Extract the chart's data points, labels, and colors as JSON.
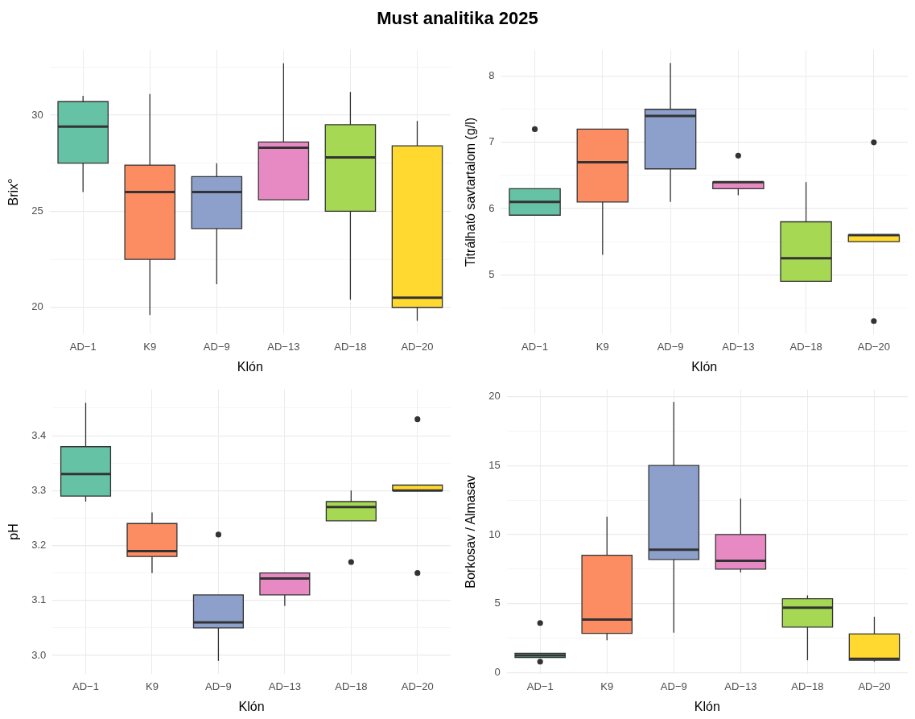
{
  "chart_data": [
    {
      "type": "box",
      "title": "Must analitika 2025",
      "xlabel": "Klón",
      "ylabel": "Brix°",
      "categories": [
        "AD−1",
        "K9",
        "AD−9",
        "AD−13",
        "AD−18",
        "AD−20"
      ],
      "colors": [
        "#66c2a5",
        "#fc8d62",
        "#8da0cb",
        "#e78ac3",
        "#a6d854",
        "#ffd92f"
      ],
      "boxes": [
        {
          "low": 26.0,
          "q1": 27.5,
          "median": 29.4,
          "q3": 30.7,
          "high": 31.0
        },
        {
          "low": 19.6,
          "q1": 22.5,
          "median": 26.0,
          "q3": 27.4,
          "high": 31.1
        },
        {
          "low": 21.2,
          "q1": 24.1,
          "median": 26.0,
          "q3": 26.8,
          "high": 27.5
        },
        {
          "low": 25.6,
          "q1": 25.6,
          "median": 28.3,
          "q3": 28.6,
          "high": 32.7
        },
        {
          "low": 20.4,
          "q1": 25.0,
          "median": 27.8,
          "q3": 29.5,
          "high": 31.2
        },
        {
          "low": 19.3,
          "q1": 20.0,
          "median": 20.5,
          "q3": 28.4,
          "high": 29.7
        }
      ],
      "ylim": [
        18.6,
        33.4
      ],
      "yticks": [
        20,
        {
          "value": 22.5,
          "label": null
        },
        25,
        {
          "value": 27.5,
          "label": null
        },
        30,
        {
          "value": 32.5,
          "label": null
        }
      ],
      "grid": true
    },
    {
      "type": "box",
      "xlabel": "Klón",
      "ylabel": "Titrálható savtartalom (g/l)",
      "categories": [
        "AD−1",
        "K9",
        "AD−9",
        "AD−13",
        "AD−18",
        "AD−20"
      ],
      "colors": [
        "#66c2a5",
        "#fc8d62",
        "#8da0cb",
        "#e78ac3",
        "#a6d854",
        "#ffd92f"
      ],
      "boxes": [
        {
          "low": 5.9,
          "q1": 5.9,
          "median": 6.1,
          "q3": 6.3,
          "high": 6.3,
          "outliers": [
            7.2
          ]
        },
        {
          "low": 5.3,
          "q1": 6.1,
          "median": 6.7,
          "q3": 7.2,
          "high": 7.2
        },
        {
          "low": 6.1,
          "q1": 6.6,
          "median": 7.4,
          "q3": 7.5,
          "high": 8.2
        },
        {
          "low": 6.2,
          "q1": 6.3,
          "median": 6.4,
          "q3": 6.4,
          "high": 6.4,
          "outliers": [
            6.8
          ]
        },
        {
          "low": 4.9,
          "q1": 4.9,
          "median": 5.25,
          "q3": 5.8,
          "high": 6.4
        },
        {
          "low": 5.5,
          "q1": 5.5,
          "median": 5.6,
          "q3": 5.6,
          "high": 5.6,
          "outliers": [
            7.0,
            4.3
          ]
        }
      ],
      "ylim": [
        4.1,
        8.4
      ],
      "yticks": [
        {
          "value": 4.5,
          "label": null
        },
        5,
        {
          "value": 5.5,
          "label": null
        },
        6,
        {
          "value": 6.5,
          "label": null
        },
        7,
        {
          "value": 7.5,
          "label": null
        },
        8
      ],
      "grid": true
    },
    {
      "type": "box",
      "xlabel": "Klón",
      "ylabel": "pH",
      "categories": [
        "AD−1",
        "K9",
        "AD−9",
        "AD−13",
        "AD−18",
        "AD−20"
      ],
      "colors": [
        "#66c2a5",
        "#fc8d62",
        "#8da0cb",
        "#e78ac3",
        "#a6d854",
        "#ffd92f"
      ],
      "boxes": [
        {
          "low": 3.28,
          "q1": 3.29,
          "median": 3.33,
          "q3": 3.38,
          "high": 3.46
        },
        {
          "low": 3.15,
          "q1": 3.18,
          "median": 3.19,
          "q3": 3.24,
          "high": 3.26
        },
        {
          "low": 2.99,
          "q1": 3.05,
          "median": 3.06,
          "q3": 3.11,
          "high": 3.11,
          "outliers": [
            3.22
          ]
        },
        {
          "low": 3.09,
          "q1": 3.11,
          "median": 3.14,
          "q3": 3.15,
          "high": 3.15
        },
        {
          "low": 3.245,
          "q1": 3.245,
          "median": 3.27,
          "q3": 3.28,
          "high": 3.3,
          "outliers": [
            3.17
          ]
        },
        {
          "low": 3.3,
          "q1": 3.3,
          "median": 3.3,
          "q3": 3.31,
          "high": 3.31,
          "outliers": [
            3.43,
            3.15
          ]
        }
      ],
      "ylim": [
        2.966,
        3.484
      ],
      "yticks": [
        {
          "value": 3,
          "label": "3.0"
        },
        {
          "value": 3.05,
          "label": null
        },
        3.1,
        {
          "value": 3.15,
          "label": null
        },
        3.2,
        {
          "value": 3.25,
          "label": null
        },
        3.3,
        {
          "value": 3.35,
          "label": null
        },
        3.4,
        {
          "value": 3.45,
          "label": null
        }
      ],
      "grid": true
    },
    {
      "type": "box",
      "xlabel": "Klón",
      "ylabel": "Borkosav / Almasav",
      "categories": [
        "AD−1",
        "K9",
        "AD−9",
        "AD−13",
        "AD−18",
        "AD−20"
      ],
      "colors": [
        "#66c2a5",
        "#fc8d62",
        "#8da0cb",
        "#e78ac3",
        "#a6d854",
        "#ffd92f"
      ],
      "boxes": [
        {
          "low": 1.1,
          "q1": 1.1,
          "median": 1.25,
          "q3": 1.4,
          "high": 1.4,
          "outliers": [
            3.6,
            0.8
          ]
        },
        {
          "low": 2.35,
          "q1": 2.85,
          "median": 3.85,
          "q3": 8.5,
          "high": 11.3
        },
        {
          "low": 2.9,
          "q1": 8.2,
          "median": 8.9,
          "q3": 15.0,
          "high": 19.6
        },
        {
          "low": 7.25,
          "q1": 7.5,
          "median": 8.1,
          "q3": 10.0,
          "high": 12.6
        },
        {
          "low": 0.9,
          "q1": 3.3,
          "median": 4.7,
          "q3": 5.35,
          "high": 5.6
        },
        {
          "low": 0.8,
          "q1": 0.9,
          "median": 1.0,
          "q3": 2.8,
          "high": 4.05
        }
      ],
      "ylim": [
        -0.1,
        20.5
      ],
      "yticks": [
        0,
        {
          "value": 2.5,
          "label": null
        },
        5,
        {
          "value": 7.5,
          "label": null
        },
        10,
        {
          "value": 12.5,
          "label": null
        },
        15,
        {
          "value": 17.5,
          "label": null
        },
        20
      ],
      "grid": true
    }
  ]
}
